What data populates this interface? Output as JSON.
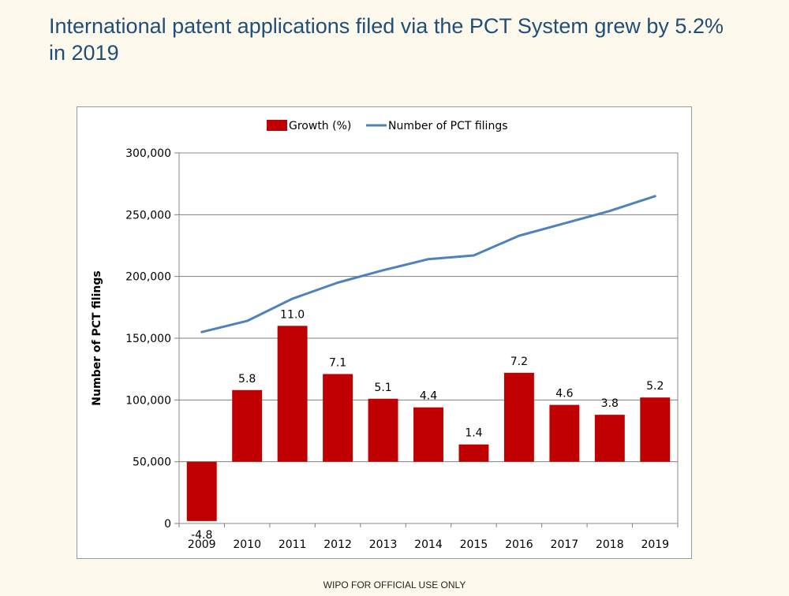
{
  "slide": {
    "title": "International patent applications filed via the PCT System grew by 5.2% in 2019",
    "footer": "WIPO FOR OFFICIAL USE ONLY"
  },
  "colors": {
    "background": "#fdf9ec",
    "title": "#1f4e79",
    "bar": "#c00000",
    "line": "#4f81bd"
  },
  "chart_data": {
    "type": "bar",
    "title": "",
    "xlabel": "",
    "ylabel": "Number of PCT filings",
    "ylim": [
      0,
      300000
    ],
    "yticks": [
      0,
      50000,
      100000,
      150000,
      200000,
      250000,
      300000
    ],
    "ytick_labels": [
      "0",
      "50,000",
      "100,000",
      "150,000",
      "200,000",
      "250,000",
      "300,000"
    ],
    "bar_secondary_axis": {
      "range": [
        -10,
        20
      ],
      "zero_at": 50000
    },
    "categories": [
      "2009",
      "2010",
      "2011",
      "2012",
      "2013",
      "2014",
      "2015",
      "2016",
      "2017",
      "2018",
      "2019"
    ],
    "grid": true,
    "legend_position": "top-center",
    "series": [
      {
        "name": "Growth (%)",
        "type": "bar",
        "values": [
          -4.8,
          5.8,
          11.0,
          7.1,
          5.1,
          4.4,
          1.4,
          7.2,
          4.6,
          3.8,
          5.2
        ],
        "labels": [
          "-4.8",
          "5.8",
          "11.0",
          "7.1",
          "5.1",
          "4.4",
          "1.4",
          "7.2",
          "4.6",
          "3.8",
          "5.2"
        ]
      },
      {
        "name": "Number of PCT filings",
        "type": "line",
        "values": [
          155000,
          164000,
          182000,
          195000,
          205000,
          214000,
          217000,
          233000,
          243000,
          253000,
          265000
        ]
      }
    ]
  }
}
